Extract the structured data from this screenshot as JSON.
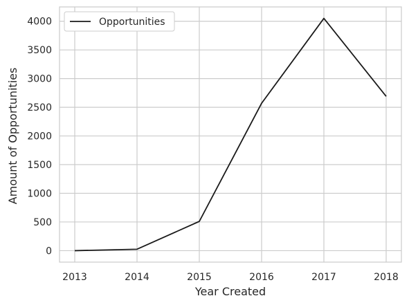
{
  "chart_data": {
    "type": "line",
    "x": [
      "2013",
      "2014",
      "2015",
      "2016",
      "2017",
      "2018"
    ],
    "series": [
      {
        "name": "Opportunities",
        "values": [
          0,
          25,
          510,
          2570,
          4050,
          2690
        ],
        "color": "#1a1a1a"
      }
    ],
    "xlabel": "Year Created",
    "ylabel": "Amount of Opportunities",
    "yticks": [
      0,
      500,
      1000,
      1500,
      2000,
      2500,
      3000,
      3500,
      4000
    ],
    "ylim": [
      -200,
      4250
    ],
    "grid": true,
    "legend_position": "top-left",
    "colors": {
      "grid": "#cccccc",
      "axes_edge": "#cccccc",
      "text": "#262626"
    }
  }
}
